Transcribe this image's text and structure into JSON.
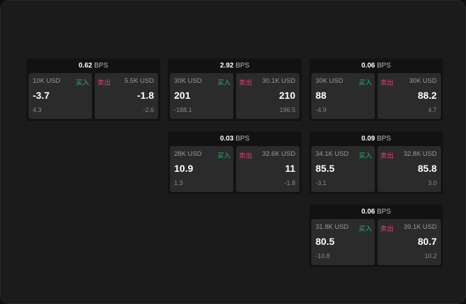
{
  "labels": {
    "buy": "买入",
    "sell": "卖出",
    "unit": "BPS"
  },
  "colors": {
    "buy": "#2fb36a",
    "sell": "#e0456e"
  },
  "widgets": [
    {
      "spread": "0.62",
      "buy": {
        "size": "10K USD",
        "price": "-3.7",
        "change": "4.3"
      },
      "sell": {
        "size": "5.5K USD",
        "price": "-1.8",
        "change": "-2.6"
      }
    },
    {
      "spread": "2.92",
      "buy": {
        "size": "30K USD",
        "price": "201",
        "change": "-188.1"
      },
      "sell": {
        "size": "30.1K USD",
        "price": "210",
        "change": "196.5"
      }
    },
    {
      "spread": "0.06",
      "buy": {
        "size": "30K USD",
        "price": "88",
        "change": "-4.9"
      },
      "sell": {
        "size": "30K USD",
        "price": "88.2",
        "change": "4.7"
      }
    },
    {
      "spread": "0.03",
      "buy": {
        "size": "28K USD",
        "price": "10.9",
        "change": "1.3"
      },
      "sell": {
        "size": "32.6K USD",
        "price": "11",
        "change": "-1.8"
      }
    },
    {
      "spread": "0.09",
      "buy": {
        "size": "34.1K USD",
        "price": "85.5",
        "change": "-3.1"
      },
      "sell": {
        "size": "32.8K USD",
        "price": "85.8",
        "change": "3.0"
      }
    },
    {
      "spread": "0.06",
      "buy": {
        "size": "31.8K USD",
        "price": "80.5",
        "change": "-10.8"
      },
      "sell": {
        "size": "39.1K USD",
        "price": "80.7",
        "change": "10.2"
      }
    }
  ]
}
